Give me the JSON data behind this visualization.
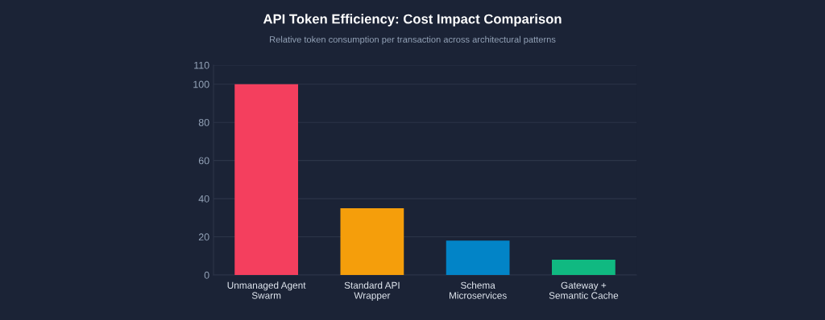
{
  "chart_data": {
    "type": "bar",
    "title": "API Token Efficiency: Cost Impact Comparison",
    "subtitle": "Relative token consumption per transaction across architectural patterns",
    "categories": [
      "Unmanaged Agent\nSwarm",
      "Standard API\nWrapper",
      "Schema\nMicroservices",
      "Gateway +\nSemantic Cache"
    ],
    "values": [
      100,
      35,
      18,
      8
    ],
    "colors": [
      "#f43f5e",
      "#f59e0b",
      "#0284c7",
      "#10b981"
    ],
    "ylim": [
      0,
      110
    ],
    "yticks": [
      0,
      20,
      40,
      60,
      80,
      100,
      110
    ],
    "grid": "y"
  }
}
